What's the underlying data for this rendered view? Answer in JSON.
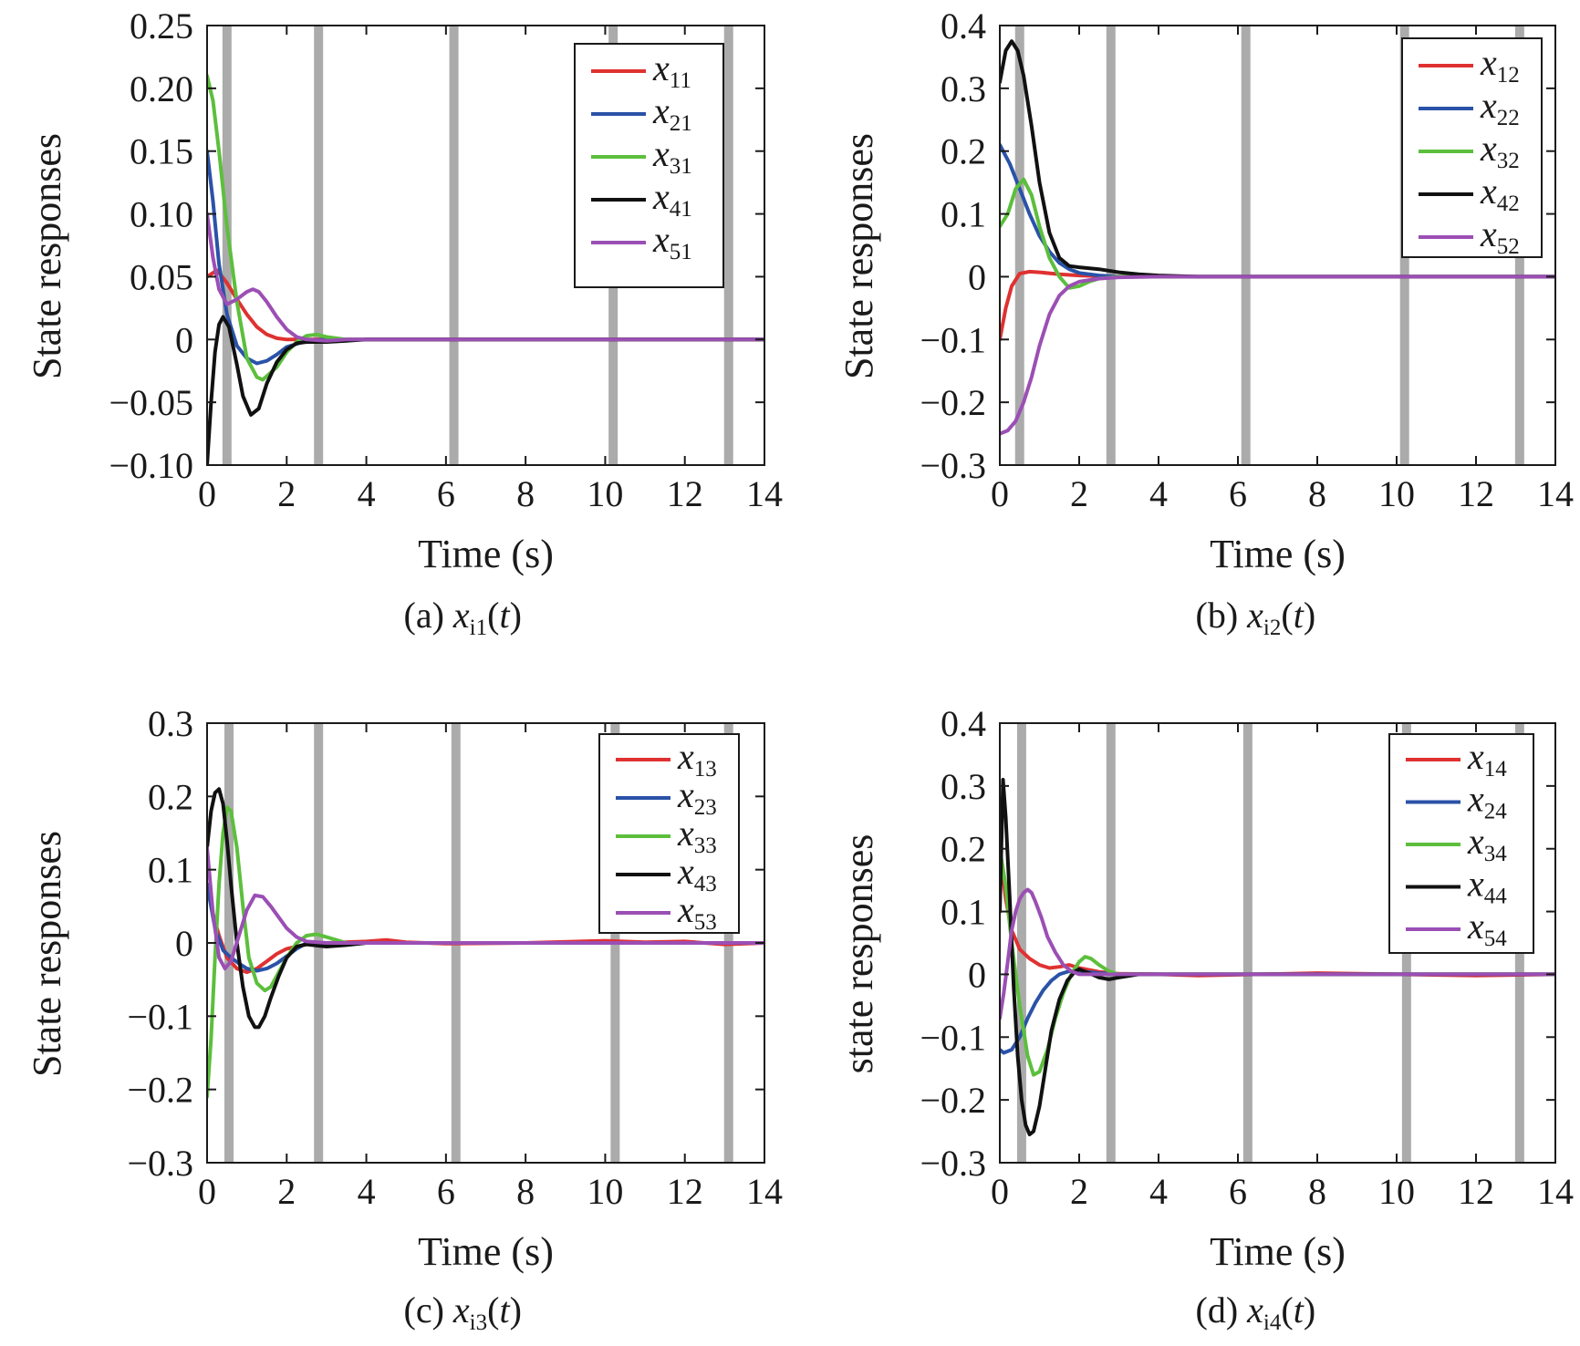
{
  "colors": {
    "red": "#e03131",
    "blue": "#2a52a8",
    "green": "#5cbf3c",
    "black": "#111111",
    "purple": "#9b4fb4",
    "switch_band": "#a6a6a6"
  },
  "chart_data": [
    {
      "type": "line",
      "panel_id": "a",
      "caption": {
        "prefix": "(a) ",
        "var": "x",
        "sub": "i1",
        "arg": "(t)"
      },
      "xlabel": "Time (s)",
      "ylabel": "State responses",
      "xlim": [
        0,
        14
      ],
      "ylim": [
        -0.1,
        0.25
      ],
      "xticks": [
        0,
        2,
        4,
        6,
        8,
        10,
        12,
        14
      ],
      "yticks": [
        -0.1,
        -0.05,
        0,
        0.05,
        0.1,
        0.15,
        0.2,
        0.25
      ],
      "ytick_labels": [
        "−0.10",
        "−0.05",
        "0",
        "0.05",
        "0.10",
        "0.15",
        "0.20",
        "0.25"
      ],
      "switch_times": [
        0.5,
        2.8,
        6.2,
        10.2,
        13.1
      ],
      "legend_position": "top-right",
      "series": [
        {
          "name": "x",
          "sub": "11",
          "color": "red",
          "x": [
            0,
            0.25,
            0.5,
            0.75,
            1,
            1.25,
            1.5,
            1.75,
            2,
            2.5,
            3,
            4,
            5,
            14
          ],
          "y": [
            0.05,
            0.055,
            0.045,
            0.032,
            0.02,
            0.01,
            0.004,
            0.001,
            0,
            0,
            0,
            0,
            0,
            0
          ]
        },
        {
          "name": "x",
          "sub": "21",
          "color": "blue",
          "x": [
            0,
            0.15,
            0.3,
            0.5,
            0.75,
            1,
            1.25,
            1.5,
            1.75,
            2,
            2.5,
            3,
            4,
            5,
            14
          ],
          "y": [
            0.15,
            0.11,
            0.06,
            0.02,
            -0.005,
            -0.015,
            -0.019,
            -0.017,
            -0.012,
            -0.006,
            -0.001,
            0,
            0,
            0,
            0
          ]
        },
        {
          "name": "x",
          "sub": "31",
          "color": "green",
          "x": [
            0,
            0.15,
            0.3,
            0.5,
            0.75,
            1,
            1.25,
            1.4,
            1.75,
            2,
            2.25,
            2.5,
            2.75,
            3,
            3.5,
            4,
            5,
            14
          ],
          "y": [
            0.21,
            0.19,
            0.15,
            0.09,
            0.03,
            -0.015,
            -0.03,
            -0.032,
            -0.022,
            -0.01,
            -0.002,
            0.003,
            0.004,
            0.002,
            0,
            0,
            0,
            0
          ]
        },
        {
          "name": "x",
          "sub": "41",
          "color": "black",
          "x": [
            0,
            0.1,
            0.2,
            0.3,
            0.4,
            0.55,
            0.75,
            0.9,
            1.1,
            1.3,
            1.5,
            1.75,
            2,
            2.25,
            2.5,
            3,
            3.5,
            4,
            5,
            14
          ],
          "y": [
            -0.1,
            -0.05,
            -0.01,
            0.012,
            0.018,
            0.01,
            -0.02,
            -0.045,
            -0.06,
            -0.055,
            -0.035,
            -0.018,
            -0.008,
            -0.003,
            -0.002,
            -0.002,
            -0.001,
            0,
            0,
            0
          ]
        },
        {
          "name": "x",
          "sub": "51",
          "color": "purple",
          "x": [
            0,
            0.15,
            0.3,
            0.5,
            0.75,
            1,
            1.15,
            1.3,
            1.5,
            1.75,
            2,
            2.25,
            2.5,
            3,
            3.5,
            4,
            5,
            14
          ],
          "y": [
            0.1,
            0.065,
            0.04,
            0.028,
            0.032,
            0.038,
            0.04,
            0.038,
            0.03,
            0.018,
            0.008,
            0.002,
            0,
            -0.001,
            0,
            0,
            0,
            0
          ]
        }
      ]
    },
    {
      "type": "line",
      "panel_id": "b",
      "caption": {
        "prefix": "(b) ",
        "var": "x",
        "sub": "i2",
        "arg": "(t)"
      },
      "xlabel": "Time (s)",
      "ylabel": "State responses",
      "xlim": [
        0,
        14
      ],
      "ylim": [
        -0.3,
        0.4
      ],
      "xticks": [
        0,
        2,
        4,
        6,
        8,
        10,
        12,
        14
      ],
      "yticks": [
        -0.3,
        -0.2,
        -0.1,
        0,
        0.1,
        0.2,
        0.3,
        0.4
      ],
      "ytick_labels": [
        "−0.3",
        "−0.2",
        "−0.1",
        "0",
        "0.1",
        "0.2",
        "0.3",
        "0.4"
      ],
      "switch_times": [
        0.5,
        2.8,
        6.2,
        10.2,
        13.1
      ],
      "legend_position": "top-right",
      "series": [
        {
          "name": "x",
          "sub": "12",
          "color": "red",
          "x": [
            0,
            0.15,
            0.3,
            0.5,
            0.75,
            1,
            1.5,
            2,
            3,
            14
          ],
          "y": [
            -0.1,
            -0.05,
            -0.015,
            0.005,
            0.008,
            0.007,
            0.004,
            0.002,
            0,
            0
          ]
        },
        {
          "name": "x",
          "sub": "22",
          "color": "blue",
          "x": [
            0,
            0.25,
            0.5,
            0.75,
            1,
            1.25,
            1.5,
            1.75,
            2,
            2.5,
            3,
            4,
            14
          ],
          "y": [
            0.21,
            0.18,
            0.14,
            0.1,
            0.065,
            0.04,
            0.022,
            0.012,
            0.006,
            0.002,
            0,
            0,
            0
          ]
        },
        {
          "name": "x",
          "sub": "32",
          "color": "green",
          "x": [
            0,
            0.2,
            0.4,
            0.6,
            0.8,
            1,
            1.25,
            1.5,
            1.75,
            2,
            2.25,
            2.5,
            3,
            4,
            14
          ],
          "y": [
            0.08,
            0.1,
            0.14,
            0.155,
            0.13,
            0.08,
            0.03,
            0,
            -0.018,
            -0.015,
            -0.008,
            -0.003,
            0,
            0,
            0
          ]
        },
        {
          "name": "x",
          "sub": "42",
          "color": "black",
          "x": [
            0,
            0.15,
            0.3,
            0.45,
            0.6,
            0.8,
            1,
            1.25,
            1.5,
            1.75,
            2,
            2.5,
            3,
            3.5,
            4,
            5,
            14
          ],
          "y": [
            0.31,
            0.36,
            0.375,
            0.36,
            0.32,
            0.24,
            0.15,
            0.07,
            0.03,
            0.017,
            0.015,
            0.012,
            0.007,
            0.004,
            0.002,
            0,
            0
          ]
        },
        {
          "name": "x",
          "sub": "52",
          "color": "purple",
          "x": [
            0,
            0.2,
            0.4,
            0.6,
            0.8,
            1,
            1.25,
            1.5,
            1.75,
            2,
            2.5,
            3,
            4,
            14
          ],
          "y": [
            -0.25,
            -0.245,
            -0.23,
            -0.2,
            -0.16,
            -0.11,
            -0.06,
            -0.03,
            -0.015,
            -0.008,
            -0.003,
            -0.001,
            0,
            0
          ]
        }
      ]
    },
    {
      "type": "line",
      "panel_id": "c",
      "caption": {
        "prefix": "(c) ",
        "var": "x",
        "sub": "i3",
        "arg": "(t)"
      },
      "xlabel": "Time (s)",
      "ylabel": "State responses",
      "xlim": [
        0,
        14
      ],
      "ylim": [
        -0.3,
        0.3
      ],
      "xticks": [
        0,
        2,
        4,
        6,
        8,
        10,
        12,
        14
      ],
      "yticks": [
        -0.3,
        -0.2,
        -0.1,
        0,
        0.1,
        0.2,
        0.3
      ],
      "ytick_labels": [
        "−0.3",
        "−0.2",
        "−0.1",
        "0",
        "0.1",
        "0.2",
        "0.3"
      ],
      "switch_times": [
        0.55,
        2.8,
        6.25,
        10.25,
        13.1
      ],
      "legend_position": "top-right",
      "series": [
        {
          "name": "x",
          "sub": "13",
          "color": "red",
          "x": [
            0,
            0.15,
            0.3,
            0.5,
            0.75,
            1,
            1.25,
            1.5,
            1.75,
            2,
            2.5,
            3,
            4,
            4.5,
            5,
            6,
            8,
            10,
            11,
            12,
            13,
            14
          ],
          "y": [
            0.08,
            0.04,
            0.01,
            -0.02,
            -0.035,
            -0.04,
            -0.035,
            -0.025,
            -0.015,
            -0.008,
            -0.002,
            0,
            0.002,
            0.004,
            0.001,
            -0.001,
            0,
            0.003,
            0.001,
            0.002,
            -0.002,
            0
          ]
        },
        {
          "name": "x",
          "sub": "23",
          "color": "blue",
          "x": [
            0,
            0.2,
            0.4,
            0.6,
            0.8,
            1,
            1.25,
            1.5,
            1.75,
            2,
            2.25,
            2.5,
            3,
            4,
            14
          ],
          "y": [
            0.08,
            0.02,
            -0.01,
            -0.02,
            -0.028,
            -0.035,
            -0.038,
            -0.035,
            -0.028,
            -0.018,
            -0.008,
            0,
            0,
            0,
            0
          ]
        },
        {
          "name": "x",
          "sub": "33",
          "color": "green",
          "x": [
            0,
            0.1,
            0.2,
            0.3,
            0.4,
            0.5,
            0.6,
            0.75,
            0.9,
            1.05,
            1.25,
            1.45,
            1.6,
            1.8,
            2,
            2.25,
            2.5,
            2.75,
            3,
            3.5,
            4,
            14
          ],
          "y": [
            -0.21,
            -0.13,
            -0.02,
            0.08,
            0.15,
            0.185,
            0.18,
            0.13,
            0.05,
            -0.02,
            -0.055,
            -0.065,
            -0.06,
            -0.04,
            -0.02,
            0,
            0.01,
            0.012,
            0.008,
            0,
            0,
            0
          ]
        },
        {
          "name": "x",
          "sub": "43",
          "color": "black",
          "x": [
            0,
            0.1,
            0.2,
            0.3,
            0.4,
            0.5,
            0.6,
            0.75,
            0.9,
            1.05,
            1.2,
            1.3,
            1.45,
            1.6,
            1.8,
            2,
            2.25,
            2.5,
            3,
            3.5,
            4,
            14
          ],
          "y": [
            0.13,
            0.18,
            0.205,
            0.21,
            0.19,
            0.14,
            0.08,
            0,
            -0.06,
            -0.1,
            -0.115,
            -0.115,
            -0.1,
            -0.075,
            -0.045,
            -0.02,
            -0.005,
            -0.002,
            -0.005,
            -0.003,
            0,
            0
          ]
        },
        {
          "name": "x",
          "sub": "53",
          "color": "purple",
          "x": [
            0,
            0.15,
            0.3,
            0.45,
            0.6,
            0.8,
            1,
            1.2,
            1.4,
            1.6,
            1.8,
            2,
            2.25,
            2.5,
            3,
            3.5,
            4,
            14
          ],
          "y": [
            0.13,
            0.04,
            -0.02,
            -0.035,
            -0.025,
            0.01,
            0.045,
            0.065,
            0.063,
            0.05,
            0.035,
            0.02,
            0.008,
            0.002,
            0,
            0,
            0,
            0
          ]
        }
      ]
    },
    {
      "type": "line",
      "panel_id": "d",
      "caption": {
        "prefix": "(d) ",
        "var": "x",
        "sub": "i4",
        "arg": "(t)"
      },
      "xlabel": "Time (s)",
      "ylabel": "state responses",
      "xlim": [
        0,
        14
      ],
      "ylim": [
        -0.3,
        0.4
      ],
      "xticks": [
        0,
        2,
        4,
        6,
        8,
        10,
        12,
        14
      ],
      "yticks": [
        -0.3,
        -0.2,
        -0.1,
        0,
        0.1,
        0.2,
        0.3,
        0.4
      ],
      "ytick_labels": [
        "−0.3",
        "−0.2",
        "−0.1",
        "0",
        "0.1",
        "0.2",
        "0.3",
        "0.4"
      ],
      "switch_times": [
        0.55,
        2.8,
        6.25,
        10.25,
        13.1
      ],
      "legend_position": "top-right",
      "series": [
        {
          "name": "x",
          "sub": "14",
          "color": "red",
          "x": [
            0,
            0.15,
            0.3,
            0.5,
            0.75,
            1,
            1.25,
            1.5,
            1.75,
            2,
            2.5,
            3,
            4,
            5,
            8,
            10,
            12,
            14
          ],
          "y": [
            0.2,
            0.12,
            0.07,
            0.04,
            0.025,
            0.015,
            0.01,
            0.012,
            0.015,
            0.01,
            0.004,
            0.001,
            0,
            -0.002,
            0.002,
            0,
            -0.002,
            0
          ]
        },
        {
          "name": "x",
          "sub": "24",
          "color": "blue",
          "x": [
            0,
            0.1,
            0.3,
            0.5,
            0.7,
            0.9,
            1.1,
            1.3,
            1.5,
            1.75,
            2,
            2.5,
            3,
            4,
            14
          ],
          "y": [
            -0.12,
            -0.125,
            -0.12,
            -0.1,
            -0.07,
            -0.045,
            -0.025,
            -0.01,
            0,
            0.005,
            0.005,
            0.002,
            0,
            0,
            0
          ]
        },
        {
          "name": "x",
          "sub": "34",
          "color": "green",
          "x": [
            0,
            0.15,
            0.3,
            0.5,
            0.7,
            0.85,
            1,
            1.2,
            1.4,
            1.6,
            1.8,
            2,
            2.15,
            2.3,
            2.5,
            2.75,
            3,
            3.5,
            4,
            14
          ],
          "y": [
            0.2,
            0.14,
            0.05,
            -0.05,
            -0.13,
            -0.16,
            -0.155,
            -0.12,
            -0.07,
            -0.03,
            0,
            0.02,
            0.028,
            0.025,
            0.015,
            0.005,
            0,
            0,
            0,
            0
          ]
        },
        {
          "name": "x",
          "sub": "44",
          "color": "black",
          "x": [
            0,
            0.08,
            0.15,
            0.25,
            0.35,
            0.45,
            0.55,
            0.65,
            0.75,
            0.85,
            1,
            1.15,
            1.3,
            1.5,
            1.7,
            1.9,
            2,
            2.25,
            2.5,
            2.75,
            3,
            3.5,
            4,
            14
          ],
          "y": [
            0.1,
            0.31,
            0.25,
            0.12,
            -0.02,
            -0.13,
            -0.2,
            -0.24,
            -0.255,
            -0.25,
            -0.21,
            -0.15,
            -0.09,
            -0.04,
            -0.01,
            0.005,
            0.008,
            0.002,
            -0.005,
            -0.008,
            -0.005,
            0,
            0,
            0
          ]
        },
        {
          "name": "x",
          "sub": "54",
          "color": "purple",
          "x": [
            0,
            0.1,
            0.2,
            0.3,
            0.4,
            0.5,
            0.6,
            0.7,
            0.8,
            0.9,
            1.05,
            1.2,
            1.4,
            1.6,
            1.8,
            2,
            2.5,
            3,
            4,
            14
          ],
          "y": [
            -0.07,
            -0.03,
            0.02,
            0.07,
            0.1,
            0.12,
            0.13,
            0.135,
            0.13,
            0.115,
            0.09,
            0.06,
            0.035,
            0.015,
            0.005,
            0,
            0,
            0,
            0,
            0
          ]
        }
      ]
    }
  ]
}
